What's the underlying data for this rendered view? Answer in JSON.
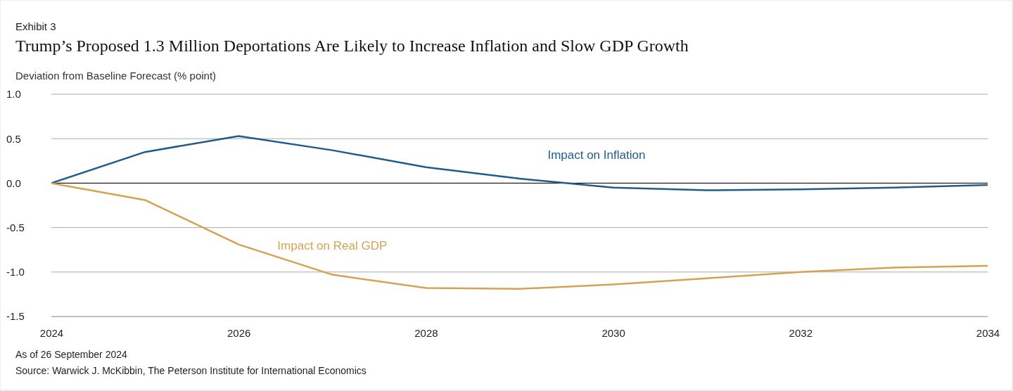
{
  "chart_data": {
    "type": "line",
    "title": "Trump’s Proposed 1.3 Million Deportations Are Likely to Increase Inflation and Slow GDP Growth",
    "subtitle": "Exhibit 3",
    "ylabel": "Deviation from Baseline Forecast (% point)",
    "x": [
      2024,
      2025,
      2026,
      2027,
      2028,
      2029,
      2030,
      2031,
      2032,
      2033,
      2034
    ],
    "series": [
      {
        "name": "Impact on Inflation",
        "color": "#1f5c8b",
        "values": [
          0,
          0.35,
          0.53,
          0.37,
          0.18,
          0.05,
          -0.05,
          -0.08,
          -0.07,
          -0.05,
          -0.02
        ]
      },
      {
        "name": "Impact on Real GDP",
        "color": "#d4a352",
        "values": [
          0,
          -0.19,
          -0.69,
          -1.03,
          -1.18,
          -1.19,
          -1.14,
          -1.07,
          -1.0,
          -0.95,
          -0.93
        ]
      }
    ],
    "xlim": [
      2024,
      2034
    ],
    "xticks": [
      2024,
      2026,
      2028,
      2030,
      2032,
      2034
    ],
    "ylim": [
      -1.5,
      1.0
    ],
    "yticks": [
      {
        "value": -1.5,
        "label": "-1.5"
      },
      {
        "value": -1.0,
        "label": "-1.0"
      },
      {
        "value": -0.5,
        "label": "-0.5"
      },
      {
        "value": 0,
        "label": "0.0"
      },
      {
        "value": 0.5,
        "label": "0.5"
      },
      {
        "value": 1.0,
        "label": "1.0"
      }
    ],
    "grid": "y",
    "marker": "none",
    "line_style": "solid",
    "ref_lines": [
      {
        "axis": "y",
        "value": 0,
        "color": "#000000"
      }
    ],
    "annotations": [
      "As of 26 September 2024",
      "Source: Warwick J. McKibbin, The Peterson Institute for International Economics"
    ]
  }
}
